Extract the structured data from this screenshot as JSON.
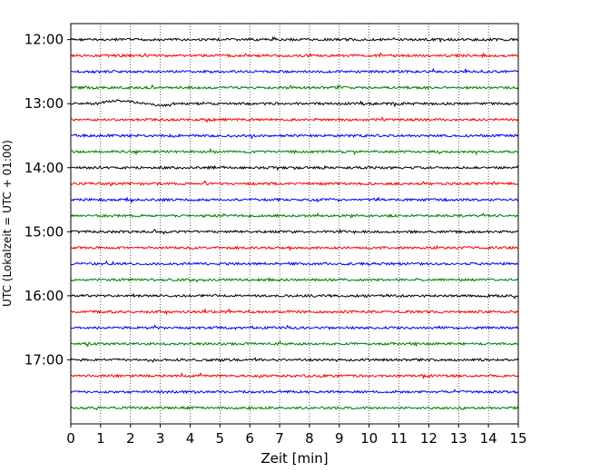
{
  "chart_data": {
    "type": "line",
    "title": "",
    "xlabel": "Zeit  [min]",
    "ylabel": "UTC (Lokalzeit = UTC + 01:00)",
    "xlim": [
      0,
      15
    ],
    "x_ticks": [
      "0",
      "1",
      "2",
      "3",
      "4",
      "5",
      "6",
      "7",
      "8",
      "9",
      "10",
      "11",
      "12",
      "13",
      "14",
      "15"
    ],
    "ylim_hours": [
      11.75,
      18.0
    ],
    "y_ticks": [
      "12:00",
      "13:00",
      "14:00",
      "15:00",
      "16:00",
      "17:00"
    ],
    "y_tick_values": [
      12,
      13,
      14,
      15,
      16,
      17
    ],
    "grid": "vertical-dotted",
    "trace_interval_minutes": 15,
    "trace_start_times": [
      "12:00",
      "12:15",
      "12:30",
      "12:45",
      "13:00",
      "13:15",
      "13:30",
      "13:45",
      "14:00",
      "14:15",
      "14:30",
      "14:45",
      "15:00",
      "15:15",
      "15:30",
      "15:45",
      "16:00",
      "16:15",
      "16:30",
      "16:45",
      "17:00",
      "17:15",
      "17:30",
      "17:45"
    ],
    "trace_colors": [
      "#000000",
      "#ff0000",
      "#0000ff",
      "#008000"
    ],
    "events": [
      {
        "trace": "13:00",
        "start_min": 0.9,
        "end_min": 3.4,
        "note": "low-frequency disturbance"
      }
    ]
  }
}
